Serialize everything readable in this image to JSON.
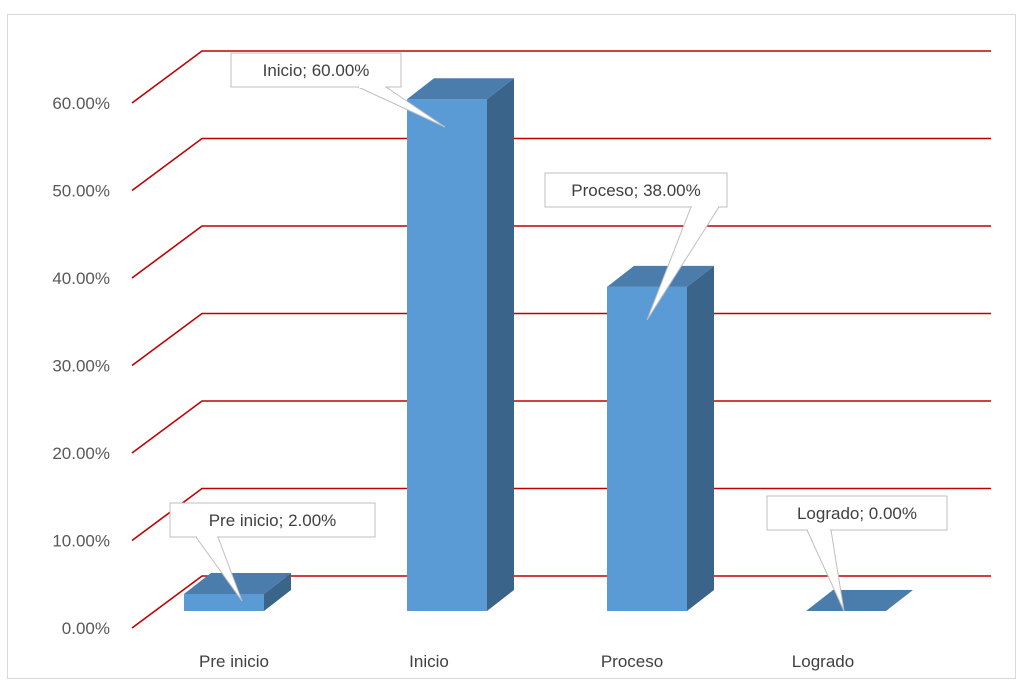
{
  "chart_data": {
    "type": "bar",
    "categories": [
      "Pre inicio",
      "Inicio",
      "Proceso",
      "Logrado"
    ],
    "values": [
      2.0,
      60.0,
      38.0,
      0.0
    ],
    "value_format": "percent",
    "ylim": [
      0,
      60
    ],
    "ytick_labels": [
      "0.00%",
      "10.00%",
      "20.00%",
      "30.00%",
      "40.00%",
      "50.00%",
      "60.00%"
    ],
    "data_labels": [
      "Pre inicio; 2.00%",
      "Inicio; 60.00%",
      "Proceso; 38.00%",
      "Logrado; 0.00%"
    ],
    "title": "",
    "xlabel": "",
    "ylabel": "",
    "grid": true,
    "legend": "none",
    "style": "3d-column",
    "colors": {
      "bar_front": "#5b9bd5",
      "bar_side": "#3a6489",
      "bar_top": "#4a7cac",
      "gridline": "#c00000",
      "tick_text": "#595959"
    }
  }
}
